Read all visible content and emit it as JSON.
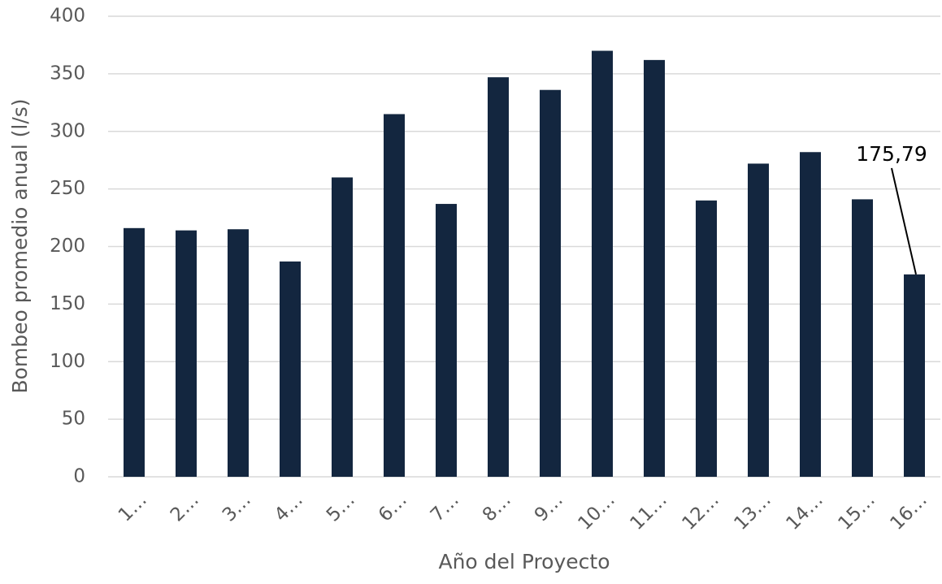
{
  "chart_data": {
    "type": "bar",
    "xlabel": "Año del Proyecto",
    "ylabel": "Bombeo promedio anual (l/s)",
    "categories": [
      "1…",
      "2…",
      "3…",
      "4…",
      "5…",
      "6…",
      "7…",
      "8…",
      "9…",
      "10…",
      "11…",
      "12…",
      "13…",
      "14…",
      "15…",
      "16…"
    ],
    "values": [
      216,
      214,
      215,
      187,
      260,
      315,
      237,
      347,
      336,
      370,
      362,
      240,
      272,
      282,
      241,
      175.79
    ],
    "value_labels": [
      null,
      null,
      null,
      null,
      null,
      null,
      null,
      null,
      null,
      null,
      null,
      null,
      null,
      null,
      null,
      "175,79"
    ],
    "color": "#13263f",
    "ylim": [
      0,
      400
    ],
    "yticks": [
      0,
      50,
      100,
      150,
      200,
      250,
      300,
      350,
      400
    ],
    "grid": true
  }
}
